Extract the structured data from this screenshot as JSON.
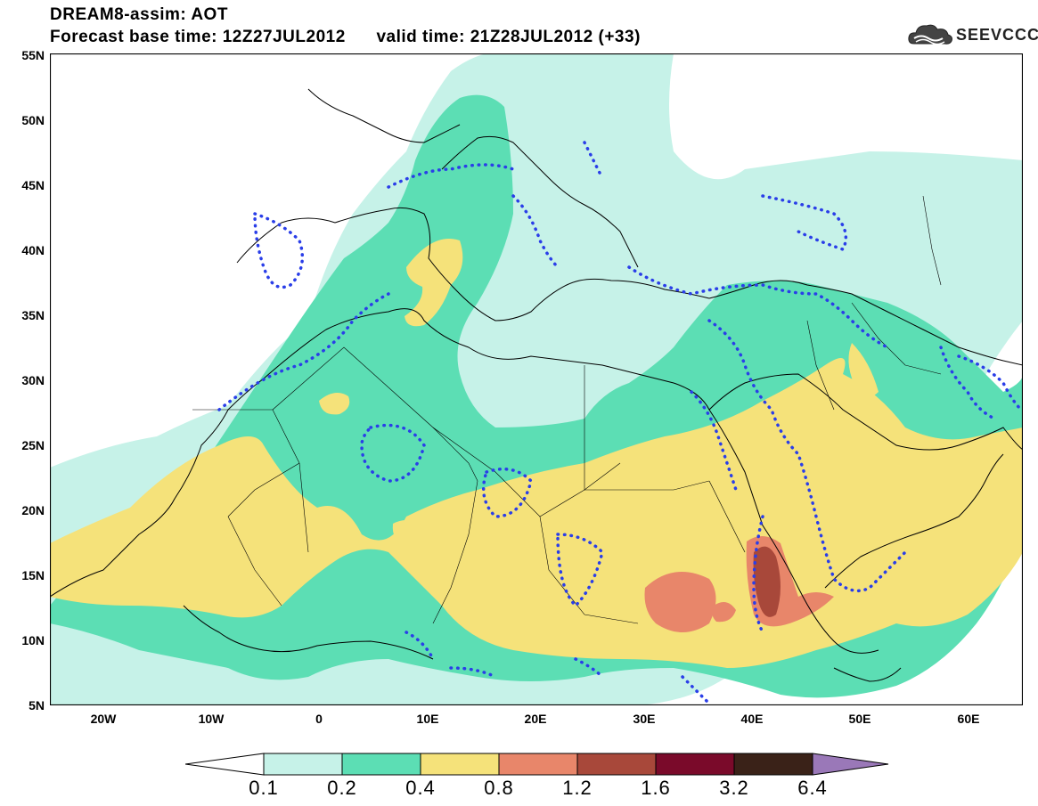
{
  "header": {
    "title": "DREAM8-assim: AOT",
    "subtitle": "Forecast base time: 12Z27JUL2012      valid time: 21Z28JUL2012 (+33)"
  },
  "logo": {
    "text": "SEEVCCC",
    "icon": "cloud-icon"
  },
  "map": {
    "lat_labels": [
      "55N",
      "50N",
      "45N",
      "40N",
      "35N",
      "30N",
      "25N",
      "20N",
      "15N",
      "10N",
      "5N"
    ],
    "lon_labels": [
      "20W",
      "10W",
      "0",
      "10E",
      "20E",
      "30E",
      "40E",
      "50E",
      "60E"
    ],
    "lon_range": [
      -25,
      65
    ],
    "lat_range": [
      5,
      55
    ],
    "colors": {
      "land_outline": "#000000",
      "contour_dots": "#2a3ee8",
      "background": "#ffffff"
    }
  },
  "legend": {
    "labels": [
      "0.1",
      "0.2",
      "0.4",
      "0.8",
      "1.2",
      "1.6",
      "3.2",
      "6.4"
    ],
    "colors": [
      "#ffffff",
      "#c6f2e8",
      "#5cdeb4",
      "#f5e27a",
      "#e8866a",
      "#a8483a",
      "#7a0a2a",
      "#3a2218",
      "#9a78b8"
    ]
  }
}
